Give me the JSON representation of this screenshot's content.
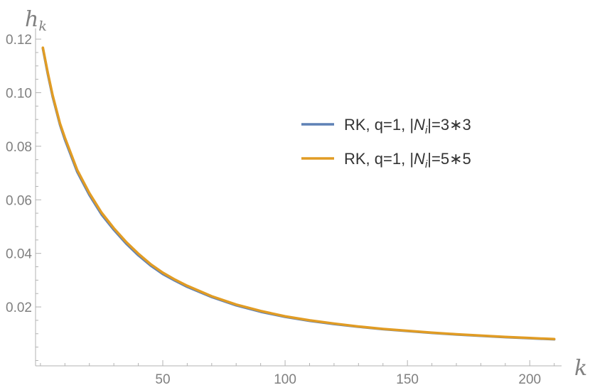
{
  "chart_data": {
    "type": "line",
    "xlabel": "k",
    "ylabel": "h",
    "ylabel_sub": "k",
    "xlim": [
      -2,
      213
    ],
    "ylim": [
      -0.002,
      0.124
    ],
    "xticks_major": [
      50,
      100,
      150,
      200
    ],
    "xticks_minor": [
      0,
      10,
      20,
      30,
      40,
      60,
      70,
      80,
      90,
      110,
      120,
      130,
      140,
      160,
      170,
      180,
      190,
      210
    ],
    "yticks_major": [
      0.02,
      0.04,
      0.06,
      0.08,
      0.1,
      0.12
    ],
    "yticks_labels": [
      "0.02",
      "0.04",
      "0.06",
      "0.08",
      "0.10",
      "0.12"
    ],
    "yticks_minor": [
      0.0,
      0.005,
      0.01,
      0.015,
      0.025,
      0.03,
      0.035,
      0.045,
      0.05,
      0.055,
      0.065,
      0.07,
      0.075,
      0.085,
      0.09,
      0.095,
      0.105,
      0.11,
      0.115
    ],
    "grid": false,
    "legend_position": "right",
    "series": [
      {
        "name_parts": [
          "RK, q=1, |",
          "N",
          "i",
          "|=3∗3"
        ],
        "color": "#5e81b5",
        "x": [
          1,
          3,
          5,
          8,
          10,
          15,
          20,
          25,
          30,
          35,
          40,
          45,
          50,
          55,
          60,
          70,
          80,
          90,
          100,
          110,
          120,
          130,
          140,
          150,
          160,
          170,
          180,
          190,
          200,
          210
        ],
        "y": [
          0.1165,
          0.107,
          0.0985,
          0.088,
          0.0825,
          0.0705,
          0.0618,
          0.0545,
          0.0488,
          0.0437,
          0.0393,
          0.0355,
          0.0323,
          0.0298,
          0.0275,
          0.0237,
          0.0206,
          0.0182,
          0.0163,
          0.0148,
          0.0136,
          0.0126,
          0.0117,
          0.011,
          0.0103,
          0.0097,
          0.0092,
          0.0087,
          0.0083,
          0.0079
        ]
      },
      {
        "name_parts": [
          "RK, q=1, |",
          "N",
          "i",
          "|=5∗5"
        ],
        "color": "#e19c24",
        "x": [
          1,
          3,
          5,
          8,
          10,
          15,
          20,
          25,
          30,
          35,
          40,
          45,
          50,
          55,
          60,
          70,
          80,
          90,
          100,
          110,
          120,
          130,
          140,
          150,
          160,
          170,
          180,
          190,
          200,
          210
        ],
        "y": [
          0.1168,
          0.1075,
          0.099,
          0.0885,
          0.0832,
          0.0712,
          0.0625,
          0.0552,
          0.0494,
          0.0443,
          0.0399,
          0.036,
          0.0328,
          0.0302,
          0.0279,
          0.024,
          0.0209,
          0.0185,
          0.0165,
          0.015,
          0.0138,
          0.0127,
          0.0118,
          0.0111,
          0.0104,
          0.0098,
          0.0093,
          0.0088,
          0.0084,
          0.008
        ]
      }
    ]
  }
}
